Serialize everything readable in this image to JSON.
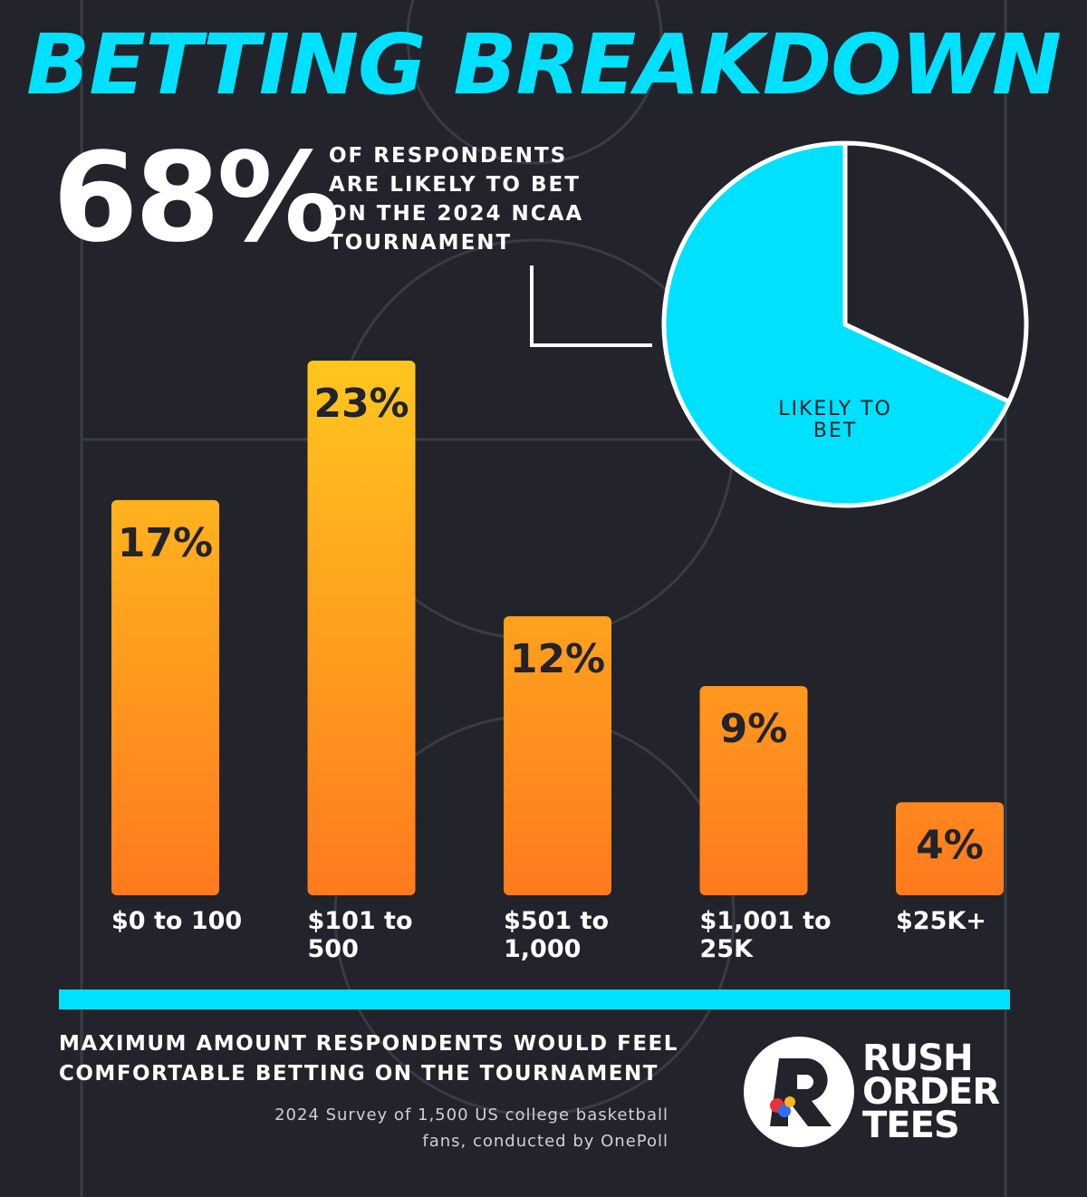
{
  "title": "BETTING BREAKDOWN",
  "brand": "RUSH ORDER TEES",
  "chart_data": [
    {
      "type": "pie",
      "subtitle": "OF RESPONDENTS ARE LIKELY TO BET ON THE 2024 NCAA TOURNAMENT",
      "categories": [
        "LIKELY TO BET",
        null
      ],
      "values": [
        68,
        32
      ],
      "value_labels": [
        "68%",
        null
      ],
      "colors": [
        "#00e1ff",
        "#22232b"
      ]
    },
    {
      "type": "bar",
      "title": "MAXIMUM AMOUNT RESPONDENTS WOULD FEEL COMFORTABLE BETTING ON THE TOURNAMENT",
      "source": "2024 Survey of 1,500 US college basketball fans, conducted by OnePoll",
      "categories": [
        "$0 to 100",
        "$101 to 500",
        "$501 to 1,000",
        "$1,001 to 25K",
        "$25K+"
      ],
      "values": [
        17,
        23,
        12,
        9,
        4
      ],
      "value_labels": [
        "17%",
        "23%",
        "12%",
        "9%",
        "4%"
      ],
      "colors": [
        "#ffc61e",
        "#ff7a1e"
      ]
    }
  ]
}
